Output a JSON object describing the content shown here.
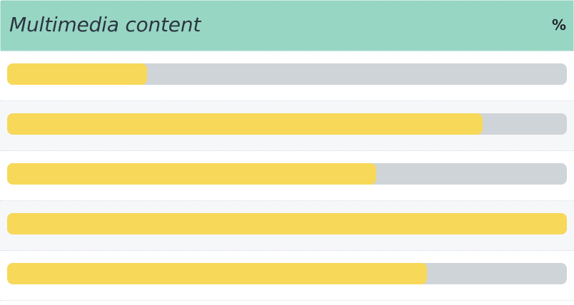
{
  "header": {
    "title": "Multimedia content",
    "icon": "percent-icon",
    "icon_glyph": "%",
    "background_color": "#98d6c4"
  },
  "progress_colors": {
    "fill": "#f7d858",
    "track": "#cfd4d8"
  },
  "progress_bars": [
    {
      "percent": 25
    },
    {
      "percent": 85
    },
    {
      "percent": 66
    },
    {
      "percent": 100
    },
    {
      "percent": 75
    }
  ]
}
